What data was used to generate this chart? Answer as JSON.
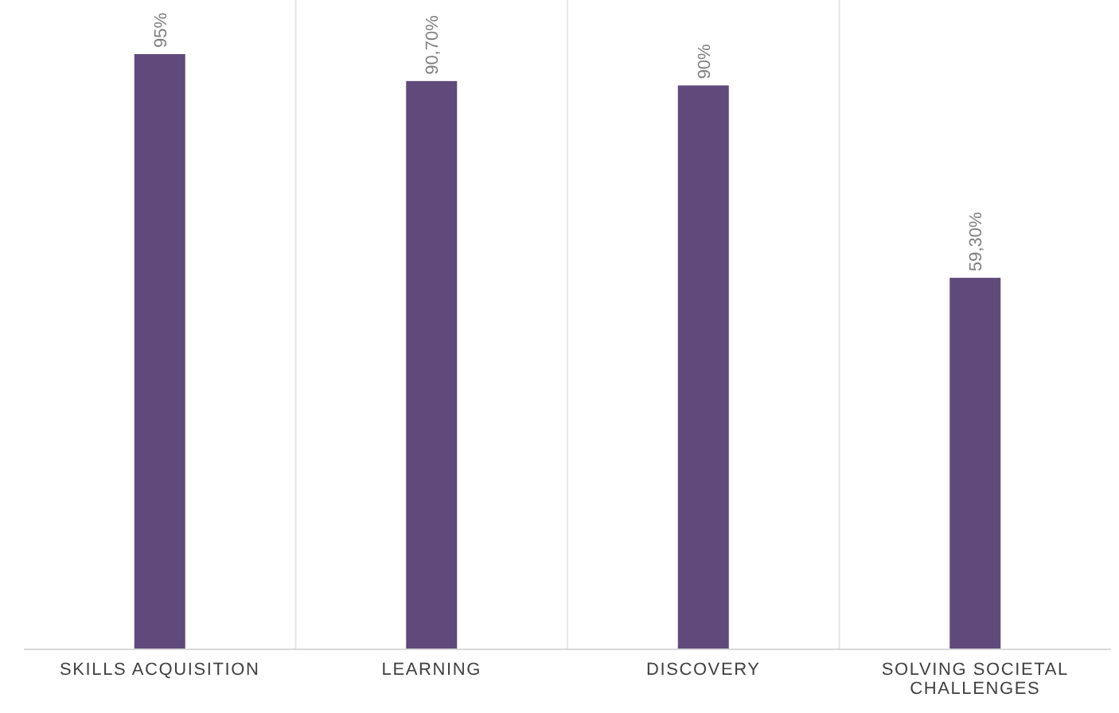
{
  "chart_data": {
    "type": "bar",
    "categories": [
      "SKILLS ACQUISITION",
      "LEARNING",
      "DISCOVERY",
      "SOLVING SOCIETAL CHALLENGES"
    ],
    "values": [
      95,
      90.7,
      90,
      59.3
    ],
    "value_labels": [
      "95%",
      "90,70%",
      "90%",
      "59,30%"
    ],
    "color": "#604a7b",
    "grid": "x"
  }
}
